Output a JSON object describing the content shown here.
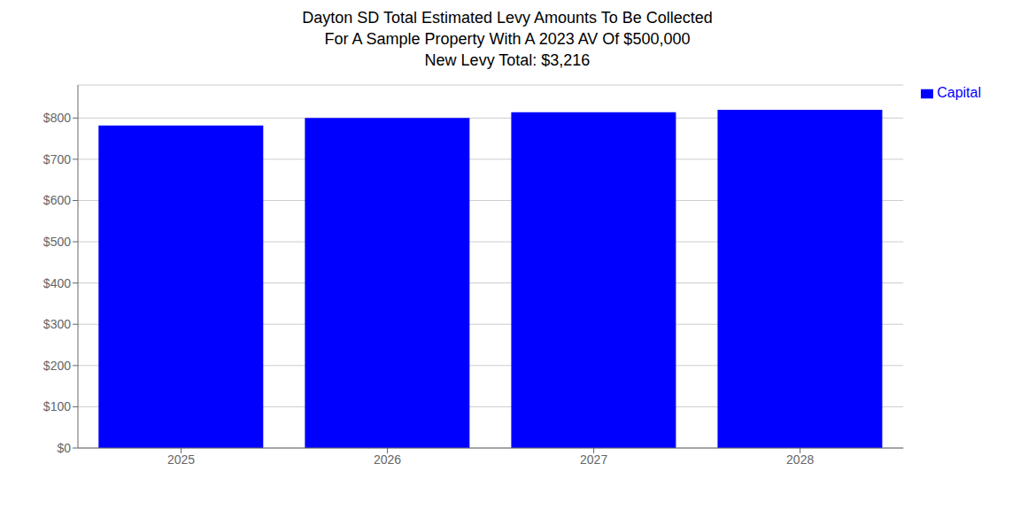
{
  "chart_data": {
    "type": "bar",
    "title": "Dayton SD Total Estimated Levy Amounts To Be Collected\nFor A Sample Property With A 2023 AV Of $500,000\nNew Levy Total: $3,216",
    "categories": [
      "2025",
      "2026",
      "2027",
      "2028"
    ],
    "series": [
      {
        "name": "Capital",
        "color": "#0000ff",
        "values": [
          782,
          800,
          814,
          820
        ]
      }
    ],
    "ylim": [
      0,
      880
    ],
    "yticks": [
      {
        "value": 0,
        "label": "$0"
      },
      {
        "value": 100,
        "label": "$100"
      },
      {
        "value": 200,
        "label": "$200"
      },
      {
        "value": 300,
        "label": "$300"
      },
      {
        "value": 400,
        "label": "$400"
      },
      {
        "value": 500,
        "label": "$500"
      },
      {
        "value": 600,
        "label": "$600"
      },
      {
        "value": 700,
        "label": "$700"
      },
      {
        "value": 800,
        "label": "$800"
      }
    ],
    "grid": true,
    "legend": "right"
  }
}
